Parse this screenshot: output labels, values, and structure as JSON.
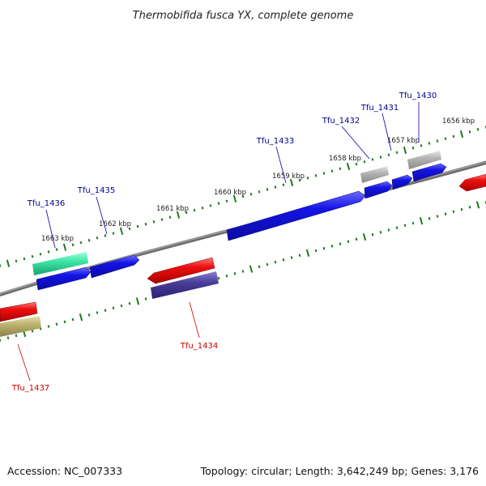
{
  "title": "Thermobifida fusca YX, complete genome",
  "footer": {
    "accession": "Accession: NC_007333",
    "summary": "Topology: circular; Length: 3,642,249 bp; Genes: 3,176"
  },
  "colors": {
    "forward": "#1010e0",
    "forward_label": "#00008b",
    "reverse_label": "#cc0000",
    "backbone": "#808080",
    "ticks": "#1e7a1e"
  },
  "ticks": [
    {
      "label": "1656 kbp"
    },
    {
      "label": "1657 kbp"
    },
    {
      "label": "1658 kbp"
    },
    {
      "label": "1659 kbp"
    },
    {
      "label": "1660 kbp"
    },
    {
      "label": "1661 kbp"
    },
    {
      "label": "1662 kbp"
    },
    {
      "label": "1663 kbp"
    }
  ],
  "genes": [
    {
      "name": "Tfu_1430",
      "strand": "forward",
      "color": "#1010e0"
    },
    {
      "name": "Tfu_1431",
      "strand": "forward",
      "color": "#1010e0"
    },
    {
      "name": "Tfu_1432",
      "strand": "forward",
      "color": "#1010e0"
    },
    {
      "name": "Tfu_1433",
      "strand": "forward",
      "color": "#1010e0"
    },
    {
      "name": "Tfu_1434",
      "strand": "reverse",
      "color": "#ee1111"
    },
    {
      "name": "Tfu_1435",
      "strand": "forward",
      "color": "#1010e0"
    },
    {
      "name": "Tfu_1436",
      "strand": "forward",
      "color": "#1010e0"
    },
    {
      "name": "Tfu_1437",
      "strand": "reverse",
      "color": "#ee1111"
    }
  ]
}
